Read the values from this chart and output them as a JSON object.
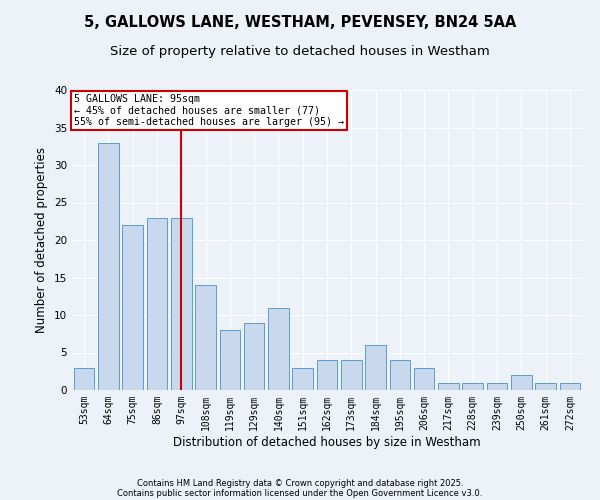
{
  "title1": "5, GALLOWS LANE, WESTHAM, PEVENSEY, BN24 5AA",
  "title2": "Size of property relative to detached houses in Westham",
  "xlabel": "Distribution of detached houses by size in Westham",
  "ylabel": "Number of detached properties",
  "categories": [
    "53sqm",
    "64sqm",
    "75sqm",
    "86sqm",
    "97sqm",
    "108sqm",
    "119sqm",
    "129sqm",
    "140sqm",
    "151sqm",
    "162sqm",
    "173sqm",
    "184sqm",
    "195sqm",
    "206sqm",
    "217sqm",
    "228sqm",
    "239sqm",
    "250sqm",
    "261sqm",
    "272sqm"
  ],
  "values": [
    3,
    33,
    22,
    23,
    23,
    14,
    8,
    9,
    11,
    3,
    4,
    4,
    6,
    4,
    3,
    1,
    1,
    1,
    2,
    1,
    1
  ],
  "bar_color": "#c9d9ed",
  "bar_edge_color": "#5b9bd5",
  "vline_x_index": 4,
  "vline_color": "#cc0000",
  "ylim": [
    0,
    40
  ],
  "yticks": [
    0,
    5,
    10,
    15,
    20,
    25,
    30,
    35,
    40
  ],
  "annotation_title": "5 GALLOWS LANE: 95sqm",
  "annotation_line1": "← 45% of detached houses are smaller (77)",
  "annotation_line2": "55% of semi-detached houses are larger (95) →",
  "annotation_box_color": "#ffffff",
  "annotation_box_edge": "#cc0000",
  "footnote1": "Contains HM Land Registry data © Crown copyright and database right 2025.",
  "footnote2": "Contains public sector information licensed under the Open Government Licence v3.0.",
  "bg_color": "#edf1f8",
  "plot_bg_color": "#edf1f8",
  "grid_color": "#ffffff",
  "title_fontsize": 10.5,
  "subtitle_fontsize": 9.5,
  "tick_fontsize": 7,
  "ylabel_fontsize": 8.5,
  "xlabel_fontsize": 8.5,
  "footnote_fontsize": 6.0
}
